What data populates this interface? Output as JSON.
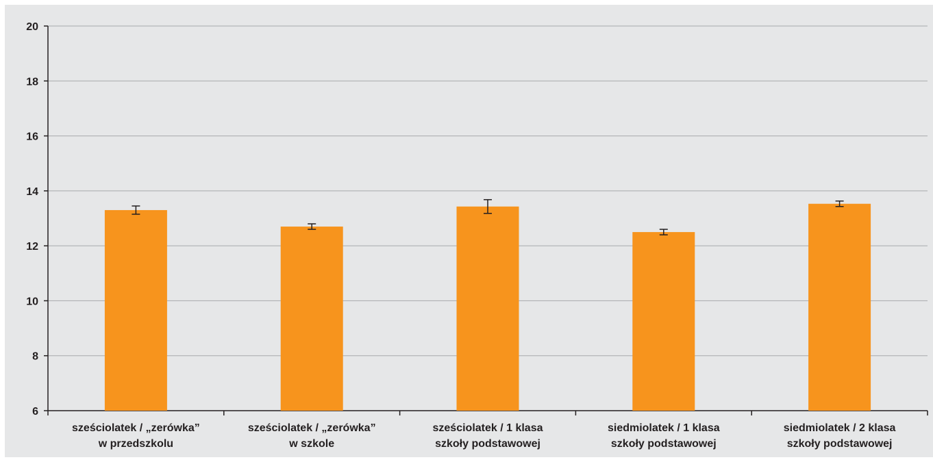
{
  "colors": {
    "background": "#e6e7e8",
    "bar": "#f7941d",
    "grid": "#a7a9ac",
    "axis": "#231f20",
    "error_bar": "#231f20"
  },
  "chart_data": {
    "type": "bar",
    "title": "",
    "xlabel": "",
    "ylabel": "",
    "ylim": [
      6,
      20
    ],
    "yticks": [
      6,
      8,
      10,
      12,
      14,
      16,
      18,
      20
    ],
    "grid": true,
    "legend": "none",
    "categories": [
      [
        "sześciolatek / „zerówka”",
        "w przedszkolu"
      ],
      [
        "sześciolatek / „zerówka”",
        "w szkole"
      ],
      [
        "sześciolatek / 1 klasa",
        "szkoły podstawowej"
      ],
      [
        "siedmiolatek / 1 klasa",
        "szkoły podstawowej"
      ],
      [
        "siedmiolatek / 2 klasa",
        "szkoły podstawowej"
      ]
    ],
    "values": [
      13.3,
      12.7,
      13.43,
      12.5,
      13.53
    ],
    "error_low": [
      13.15,
      12.6,
      13.18,
      12.4,
      13.43
    ],
    "error_high": [
      13.45,
      12.8,
      13.68,
      12.6,
      13.63
    ]
  }
}
